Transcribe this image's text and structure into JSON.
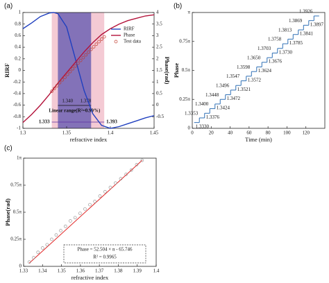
{
  "chart_data": [
    {
      "label": "(a)",
      "type": "line",
      "xlabel": "refractive index",
      "ylabel": "RIRF",
      "y2label": "Phase(rad)",
      "xlim": [
        1.3,
        1.45
      ],
      "xticks": [
        1.3,
        1.35,
        1.4,
        1.45
      ],
      "ylim": [
        -1,
        1
      ],
      "yticks": [
        -1,
        -0.8,
        -0.6,
        -0.4,
        -0.2,
        0,
        0.2,
        0.4,
        0.6,
        0.8,
        1
      ],
      "y2lim": [
        -1,
        4
      ],
      "y2ticks": [
        -0.5,
        0,
        0.5,
        1,
        1.5,
        2,
        2.5,
        3,
        3.5,
        4
      ],
      "bands": [
        {
          "x": [
            1.333,
            1.393
          ],
          "color": "#f3c4cf"
        },
        {
          "x": [
            {
              "value": 1.34,
              "label": "1.340"
            },
            1.378
          ],
          "color": "#6f63b3"
        }
      ],
      "range_label": "Linear range(R²=0.99%)",
      "series": [
        {
          "name": "RIRF",
          "color": "#1f3fbf",
          "x": [
            1.3,
            1.31,
            1.32,
            1.33,
            1.335,
            1.34,
            1.35,
            1.36,
            1.37,
            1.38,
            1.39,
            1.4,
            1.41,
            1.42,
            1.43,
            1.44,
            1.45
          ],
          "values": [
            0.72,
            0.82,
            0.93,
            0.99,
            1,
            0.98,
            0.75,
            0.2,
            -0.35,
            -0.75,
            -0.95,
            -1,
            -0.97,
            -0.92,
            -0.87,
            -0.82,
            -0.78
          ]
        },
        {
          "name": "Phase",
          "color": "#b3123a",
          "axis": "y2",
          "x": [
            1.3,
            1.31,
            1.32,
            1.33,
            1.335,
            1.34,
            1.35,
            1.36,
            1.37,
            1.38,
            1.39,
            1.4,
            1.41,
            1.42,
            1.43,
            1.44,
            1.45
          ],
          "values": [
            -0.75,
            -0.4,
            0,
            0.45,
            0.7,
            0.95,
            1.4,
            1.85,
            2.3,
            2.7,
            3.05,
            3.3,
            3.5,
            3.65,
            3.75,
            3.85,
            3.9
          ]
        },
        {
          "name": "Test data",
          "type": "scatter",
          "color": "#c0392b",
          "axis": "y2",
          "x": [
            1.333,
            1.336,
            1.339,
            1.342,
            1.345,
            1.348,
            1.351,
            1.354,
            1.357,
            1.36,
            1.363,
            1.366,
            1.369,
            1.372,
            1.375,
            1.378,
            1.381,
            1.384,
            1.387,
            1.39,
            1.393
          ],
          "values": [
            0.6,
            0.72,
            0.84,
            0.97,
            1.09,
            1.2,
            1.33,
            1.45,
            1.57,
            1.69,
            1.81,
            1.93,
            2.05,
            2.17,
            2.29,
            2.41,
            2.52,
            2.63,
            2.74,
            2.85,
            2.95
          ]
        }
      ]
    },
    {
      "label": "(b)",
      "type": "step",
      "xlabel": "Time (min)",
      "ylabel": "Phase",
      "color": "#2e6fb5",
      "xlim": [
        0,
        140
      ],
      "xticks": [
        0,
        20,
        40,
        60,
        80,
        100,
        120
      ],
      "ylim": [
        0,
        1
      ],
      "yticks": [
        0,
        {
          "value": 0.25,
          "label": "0.25π"
        },
        {
          "value": 0.5,
          "label": "0.5π"
        },
        {
          "value": 0.75,
          "label": "0.75π"
        },
        {
          "value": 1,
          "label": "π"
        }
      ],
      "x": [
        2,
        7.5,
        13,
        18.5,
        24,
        29.5,
        35,
        40.5,
        46,
        51.5,
        57,
        62.5,
        68,
        73.5,
        79,
        84.5,
        90,
        95.5,
        101,
        106.5,
        112,
        117.5,
        123,
        128.5
      ],
      "values": [
        0.05,
        0.09,
        0.13,
        0.17,
        0.21,
        0.25,
        0.29,
        0.33,
        0.37,
        0.41,
        0.45,
        0.49,
        0.53,
        0.57,
        0.61,
        0.65,
        0.69,
        0.73,
        0.77,
        0.81,
        0.85,
        0.89,
        0.93,
        0.97
      ],
      "step_labels": [
        "1.3330",
        "1.3353",
        "1.3376",
        "1.3400",
        "1.3424",
        "1.3448",
        "1.3472",
        "1.3496",
        "1.3521",
        "1.3547",
        "1.3572",
        "1.3598",
        "1.3624",
        "1.3650",
        "1.3676",
        "1.3703",
        "1.3730",
        "1.3758",
        "1.3785",
        "1.3813",
        "1.3841",
        "1.3869",
        "1.3897",
        "1.3926"
      ]
    },
    {
      "label": "(c)",
      "type": "scatter",
      "xlabel": "refractive index",
      "ylabel": "Phase(rad)",
      "color": "#999999",
      "fit_color": "#e02020",
      "xlim": [
        1.33,
        1.4
      ],
      "xticks": [
        1.33,
        1.34,
        1.35,
        1.36,
        1.37,
        1.38,
        1.39,
        1.4
      ],
      "ylim": [
        0,
        1
      ],
      "yticks": [
        0,
        {
          "value": 0.25,
          "label": "0.25π"
        },
        {
          "value": 0.5,
          "label": "0.5π"
        },
        {
          "value": 0.75,
          "label": "0.75π"
        },
        {
          "value": 1,
          "label": "1π"
        }
      ],
      "x": [
        1.333,
        1.3353,
        1.3376,
        1.34,
        1.3424,
        1.3448,
        1.3472,
        1.3496,
        1.3521,
        1.3547,
        1.3572,
        1.3598,
        1.3624,
        1.365,
        1.3676,
        1.3703,
        1.373,
        1.3758,
        1.3785,
        1.3813,
        1.3841,
        1.3869,
        1.3897,
        1.3926
      ],
      "values": [
        0.04,
        0.08,
        0.13,
        0.17,
        0.2,
        0.25,
        0.29,
        0.33,
        0.37,
        0.42,
        0.45,
        0.49,
        0.53,
        0.57,
        0.6,
        0.65,
        0.69,
        0.73,
        0.77,
        0.81,
        0.85,
        0.89,
        0.94,
        0.98
      ],
      "fit": {
        "x": [
          1.333,
          1.3926
        ],
        "values": [
          0.03,
          0.98
        ]
      },
      "annotations": [
        "Phase = 52.504 × n - 65.746",
        "R² = 0.9965"
      ]
    }
  ]
}
